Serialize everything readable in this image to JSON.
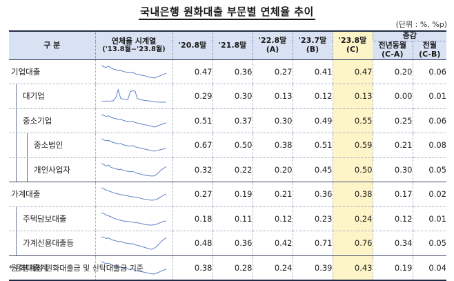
{
  "title": "국내은행 원화대출 부문별 연체율 추이",
  "unit": "(단위 : %, %p)",
  "header": {
    "category": "구  분",
    "series_line1": "연체율 시계열",
    "series_line2": "('13.8월~'23.8월)",
    "col1": "'20.8말",
    "col2": "'21.8말",
    "col3a": "'22.8말",
    "col3b": "(A)",
    "col4a": "'23.7말",
    "col4b": "(B)",
    "col5a": "'23.8말",
    "col5b": "(C)",
    "change": "증감",
    "yoy_a": "전년동월",
    "yoy_b": "(C-A)",
    "mom_a": "전월",
    "mom_b": "(C-B)"
  },
  "rows": [
    {
      "label": "기업대출",
      "indent": 0,
      "values": [
        "0.47",
        "0.36",
        "0.27",
        "0.41",
        "0.47",
        "0.20",
        "0.06"
      ],
      "trend": [
        0.8,
        0.75,
        0.72,
        0.78,
        0.7,
        0.65,
        0.62,
        0.58,
        0.6,
        0.55,
        0.52,
        0.5,
        0.48,
        0.52,
        0.45,
        0.42,
        0.4,
        0.38,
        0.36,
        0.33,
        0.3,
        0.28,
        0.26,
        0.3,
        0.34,
        0.38,
        0.42,
        0.47
      ]
    },
    {
      "label": "대기업",
      "indent": 1,
      "values": [
        "0.29",
        "0.30",
        "0.13",
        "0.12",
        "0.13",
        "0.00",
        "0.01"
      ],
      "trend": [
        0.2,
        0.22,
        0.25,
        0.22,
        0.24,
        0.28,
        0.6,
        1.4,
        0.5,
        0.45,
        0.42,
        0.4,
        1.2,
        1.3,
        1.25,
        0.5,
        0.4,
        0.35,
        0.3,
        0.28,
        0.25,
        0.2,
        0.15,
        0.14,
        0.13,
        0.12,
        0.13,
        0.13
      ]
    },
    {
      "label": "중소기업",
      "indent": 1,
      "values": [
        "0.51",
        "0.37",
        "0.30",
        "0.49",
        "0.55",
        "0.25",
        "0.06"
      ],
      "trend": [
        1.0,
        0.95,
        0.9,
        0.93,
        0.85,
        0.8,
        0.78,
        0.72,
        0.75,
        0.68,
        0.64,
        0.62,
        0.6,
        0.63,
        0.56,
        0.52,
        0.5,
        0.46,
        0.43,
        0.4,
        0.37,
        0.34,
        0.3,
        0.34,
        0.4,
        0.45,
        0.49,
        0.55
      ]
    },
    {
      "label": "중소법인",
      "indent": 2,
      "values": [
        "0.67",
        "0.50",
        "0.38",
        "0.51",
        "0.59",
        "0.21",
        "0.08"
      ],
      "trend": [
        1.3,
        1.22,
        1.15,
        1.18,
        1.08,
        1.02,
        0.98,
        0.92,
        0.95,
        0.86,
        0.82,
        0.78,
        0.75,
        0.8,
        0.7,
        0.66,
        0.62,
        0.58,
        0.54,
        0.5,
        0.46,
        0.42,
        0.38,
        0.42,
        0.47,
        0.51,
        0.55,
        0.59
      ]
    },
    {
      "label": "개인사업자",
      "indent": 2,
      "values": [
        "0.32",
        "0.22",
        "0.20",
        "0.45",
        "0.50",
        "0.30",
        "0.05"
      ],
      "trend": [
        0.6,
        0.57,
        0.52,
        0.55,
        0.48,
        0.45,
        0.44,
        0.4,
        0.42,
        0.38,
        0.36,
        0.35,
        0.33,
        0.35,
        0.3,
        0.28,
        0.26,
        0.24,
        0.22,
        0.21,
        0.2,
        0.19,
        0.2,
        0.25,
        0.32,
        0.4,
        0.45,
        0.5
      ]
    },
    {
      "label": "가계대출",
      "indent": 0,
      "values": [
        "0.27",
        "0.19",
        "0.21",
        "0.36",
        "0.38",
        "0.17",
        "0.02"
      ],
      "trend": [
        0.58,
        0.55,
        0.5,
        0.48,
        0.45,
        0.42,
        0.4,
        0.38,
        0.36,
        0.35,
        0.33,
        0.32,
        0.3,
        0.29,
        0.28,
        0.27,
        0.25,
        0.23,
        0.21,
        0.2,
        0.19,
        0.18,
        0.19,
        0.21,
        0.25,
        0.3,
        0.35,
        0.38
      ]
    },
    {
      "label": "주택담보대출",
      "indent": 1,
      "values": [
        "0.18",
        "0.11",
        "0.12",
        "0.23",
        "0.24",
        "0.12",
        "0.01"
      ],
      "trend": [
        0.5,
        0.47,
        0.42,
        0.4,
        0.37,
        0.33,
        0.3,
        0.28,
        0.26,
        0.24,
        0.23,
        0.22,
        0.21,
        0.2,
        0.19,
        0.18,
        0.17,
        0.15,
        0.13,
        0.12,
        0.11,
        0.11,
        0.12,
        0.14,
        0.17,
        0.2,
        0.23,
        0.24
      ]
    },
    {
      "label": "가계신용대출등",
      "indent": 1,
      "values": [
        "0.48",
        "0.36",
        "0.42",
        "0.71",
        "0.76",
        "0.34",
        "0.05"
      ],
      "trend": [
        0.8,
        0.78,
        0.74,
        0.76,
        0.7,
        0.68,
        0.66,
        0.63,
        0.64,
        0.6,
        0.58,
        0.57,
        0.55,
        0.56,
        0.52,
        0.5,
        0.48,
        0.45,
        0.42,
        0.4,
        0.37,
        0.36,
        0.4,
        0.46,
        0.55,
        0.64,
        0.71,
        0.76
      ]
    },
    {
      "label": "원화대출계",
      "indent": 0,
      "values": [
        "0.38",
        "0.28",
        "0.24",
        "0.39",
        "0.43",
        "0.19",
        "0.04"
      ],
      "trend": [
        0.72,
        0.68,
        0.64,
        0.66,
        0.6,
        0.56,
        0.53,
        0.5,
        0.52,
        0.47,
        0.45,
        0.43,
        0.41,
        0.44,
        0.38,
        0.36,
        0.34,
        0.32,
        0.3,
        0.28,
        0.26,
        0.24,
        0.23,
        0.27,
        0.31,
        0.35,
        0.39,
        0.43
      ]
    }
  ],
  "footnote": "* 은행계정 원화대출금 및 신탁대출금 기준",
  "colors": {
    "header_bg": "#d9e2f3",
    "highlight": "#fdf5c8",
    "spark": "#5b7fc7"
  }
}
